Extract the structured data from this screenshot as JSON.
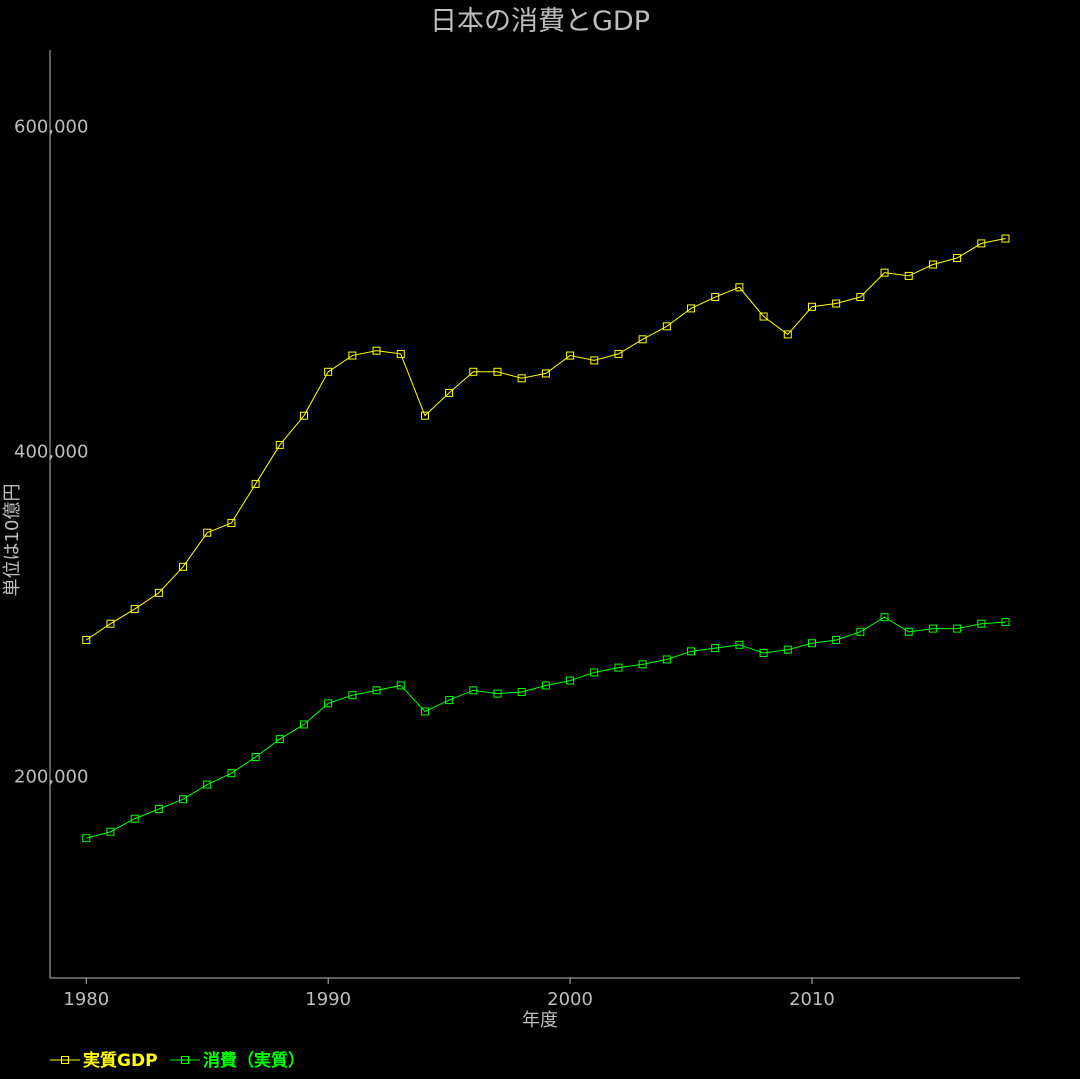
{
  "chart_data": {
    "type": "line",
    "title": "日本の消費とGDP",
    "xlabel": "年度",
    "ylabel": "単位は10億円",
    "xlim": [
      1978.5,
      2018.6
    ],
    "ylim": [
      76000,
      647000
    ],
    "x_ticks": [
      1980,
      1990,
      2000,
      2010
    ],
    "x_tick_labels": [
      "1980",
      "1990",
      "2000",
      "2010"
    ],
    "y_ticks": [
      200000,
      400000,
      600000
    ],
    "y_tick_labels": [
      "200,000",
      "400,000",
      "600,000"
    ],
    "grid": false,
    "legend": "bottom-left",
    "x": [
      1980,
      1981,
      1982,
      1983,
      1984,
      1985,
      1986,
      1987,
      1988,
      1989,
      1990,
      1991,
      1992,
      1993,
      1994,
      1995,
      1996,
      1997,
      1998,
      1999,
      2000,
      2001,
      2002,
      2003,
      2004,
      2005,
      2006,
      2007,
      2008,
      2009,
      2010,
      2011,
      2012,
      2013,
      2014,
      2015,
      2016,
      2017,
      2018
    ],
    "series": [
      {
        "name": "実質GDP",
        "color": "#ffff00",
        "values": [
          284000,
          294000,
          303000,
          313000,
          329000,
          350000,
          356000,
          380000,
          404000,
          422000,
          449000,
          459000,
          462000,
          460000,
          422000,
          436000,
          449000,
          449000,
          445000,
          448000,
          459000,
          456000,
          460000,
          469000,
          477000,
          488000,
          495000,
          501000,
          483000,
          472000,
          489000,
          491000,
          495000,
          510000,
          508000,
          515000,
          519000,
          528000,
          531000
        ]
      },
      {
        "name": "消費（実質）",
        "color": "#00ff00",
        "values": [
          162000,
          166000,
          174000,
          180000,
          186000,
          195000,
          202000,
          212000,
          223000,
          232000,
          245000,
          250000,
          253000,
          256000,
          240000,
          247000,
          253000,
          251000,
          252000,
          256000,
          259000,
          264000,
          267000,
          269000,
          272000,
          277000,
          279000,
          281000,
          276000,
          278000,
          282000,
          284000,
          289000,
          298000,
          289000,
          291000,
          291000,
          294000,
          295000
        ]
      }
    ]
  }
}
